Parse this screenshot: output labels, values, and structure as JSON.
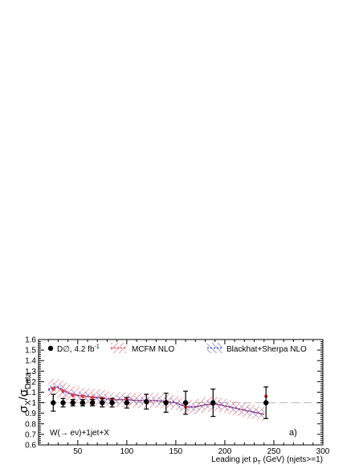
{
  "chart_data": {
    "type": "line",
    "xlabel": "Leading jet p",
    "xlabel_sub": "T",
    "xlabel_suffix": " (GeV) (njets>=1)",
    "ylabel": "σX/σData",
    "ylabel_main": "σ",
    "ylabel_sub1": "X",
    "ylabel_mid": "/σ",
    "ylabel_sub2": "Data",
    "xlim": [
      10,
      300
    ],
    "ylim": [
      0.6,
      1.6
    ],
    "xticks": [
      50,
      100,
      150,
      200,
      250,
      300
    ],
    "yticks": [
      0.6,
      0.7,
      0.8,
      0.9,
      1,
      1.1,
      1.2,
      1.3,
      1.4,
      1.5,
      1.6
    ],
    "reference_line": 1.0,
    "annotation_process": "W(→ eν)+1jet+X",
    "annotation_panel": "a)",
    "legend": {
      "data_label": "D∅, 4.2 fb",
      "data_label_sup": "-1",
      "mcfm_label": "MCFM NLO",
      "blackhat_label": "Blackhat+Sherpa NLO"
    },
    "data_points": [
      {
        "x": 25,
        "y": 1.0,
        "err": 0.08
      },
      {
        "x": 35,
        "y": 1.0,
        "err": 0.04
      },
      {
        "x": 45,
        "y": 1.0,
        "err": 0.03
      },
      {
        "x": 55,
        "y": 1.0,
        "err": 0.03
      },
      {
        "x": 65,
        "y": 1.0,
        "err": 0.03
      },
      {
        "x": 75,
        "y": 1.0,
        "err": 0.04
      },
      {
        "x": 85,
        "y": 1.0,
        "err": 0.04
      },
      {
        "x": 100,
        "y": 1.0,
        "err": 0.05
      },
      {
        "x": 120,
        "y": 1.01,
        "err": 0.07
      },
      {
        "x": 140,
        "y": 1.0,
        "err": 0.09
      },
      {
        "x": 160,
        "y": 1.0,
        "err": 0.11
      },
      {
        "x": 188,
        "y": 1.0,
        "err": 0.13
      },
      {
        "x": 242,
        "y": 1.0,
        "err": 0.15
      }
    ],
    "series": [
      {
        "name": "MCFM NLO",
        "color": "#e8383d",
        "x": [
          20,
          25,
          30,
          35,
          40,
          45,
          50,
          55,
          60,
          65,
          70,
          75,
          80,
          85,
          90,
          100,
          110,
          120,
          130,
          140,
          150,
          160,
          170,
          180,
          190,
          200,
          210,
          220,
          230,
          240
        ],
        "y": [
          1.13,
          1.14,
          1.14,
          1.12,
          1.1,
          1.08,
          1.07,
          1.06,
          1.06,
          1.05,
          1.05,
          1.05,
          1.04,
          1.03,
          1.03,
          1.03,
          1.02,
          1.02,
          1.02,
          1.01,
          1.0,
          0.96,
          0.96,
          0.98,
          0.99,
          0.97,
          0.95,
          0.93,
          0.91,
          0.89
        ],
        "band": [
          0.08,
          0.09,
          0.09,
          0.09,
          0.08,
          0.08,
          0.08,
          0.08,
          0.08,
          0.08,
          0.08,
          0.08,
          0.07,
          0.07,
          0.07,
          0.07,
          0.07,
          0.07,
          0.07,
          0.07,
          0.07,
          0.07,
          0.07,
          0.07,
          0.07,
          0.07,
          0.07,
          0.07,
          0.07,
          0.07
        ],
        "points": [
          {
            "x": 25,
            "y": 1.13
          },
          {
            "x": 35,
            "y": 1.11
          },
          {
            "x": 45,
            "y": 1.07
          },
          {
            "x": 55,
            "y": 1.06
          },
          {
            "x": 65,
            "y": 1.05
          },
          {
            "x": 75,
            "y": 1.04
          },
          {
            "x": 85,
            "y": 1.03
          },
          {
            "x": 100,
            "y": 1.03
          },
          {
            "x": 120,
            "y": 1.02
          },
          {
            "x": 140,
            "y": 1.01
          },
          {
            "x": 160,
            "y": 0.96
          },
          {
            "x": 188,
            "y": 0.99
          },
          {
            "x": 242,
            "y": 1.06
          }
        ]
      },
      {
        "name": "Blackhat+Sherpa NLO",
        "color": "#3a47c8",
        "x": [
          20,
          25,
          30,
          35,
          40,
          45,
          50,
          55,
          60,
          65,
          70,
          75,
          80,
          85,
          90,
          100,
          110,
          120,
          130,
          140,
          150,
          160,
          170,
          180,
          190,
          200,
          210,
          220,
          230,
          240
        ],
        "y": [
          1.12,
          1.15,
          1.15,
          1.12,
          1.09,
          1.08,
          1.07,
          1.07,
          1.06,
          1.05,
          1.05,
          1.05,
          1.03,
          1.02,
          1.03,
          1.03,
          1.02,
          1.02,
          1.02,
          1.01,
          1.0,
          0.96,
          0.96,
          0.98,
          0.99,
          0.97,
          0.95,
          0.93,
          0.91,
          0.89
        ],
        "band": [
          0.04,
          0.04,
          0.04,
          0.04,
          0.04,
          0.04,
          0.04,
          0.04,
          0.04,
          0.04,
          0.04,
          0.04,
          0.04,
          0.04,
          0.04,
          0.04,
          0.04,
          0.04,
          0.04,
          0.04,
          0.04,
          0.04,
          0.04,
          0.04,
          0.04,
          0.04,
          0.04,
          0.04,
          0.04,
          0.04
        ]
      }
    ]
  }
}
